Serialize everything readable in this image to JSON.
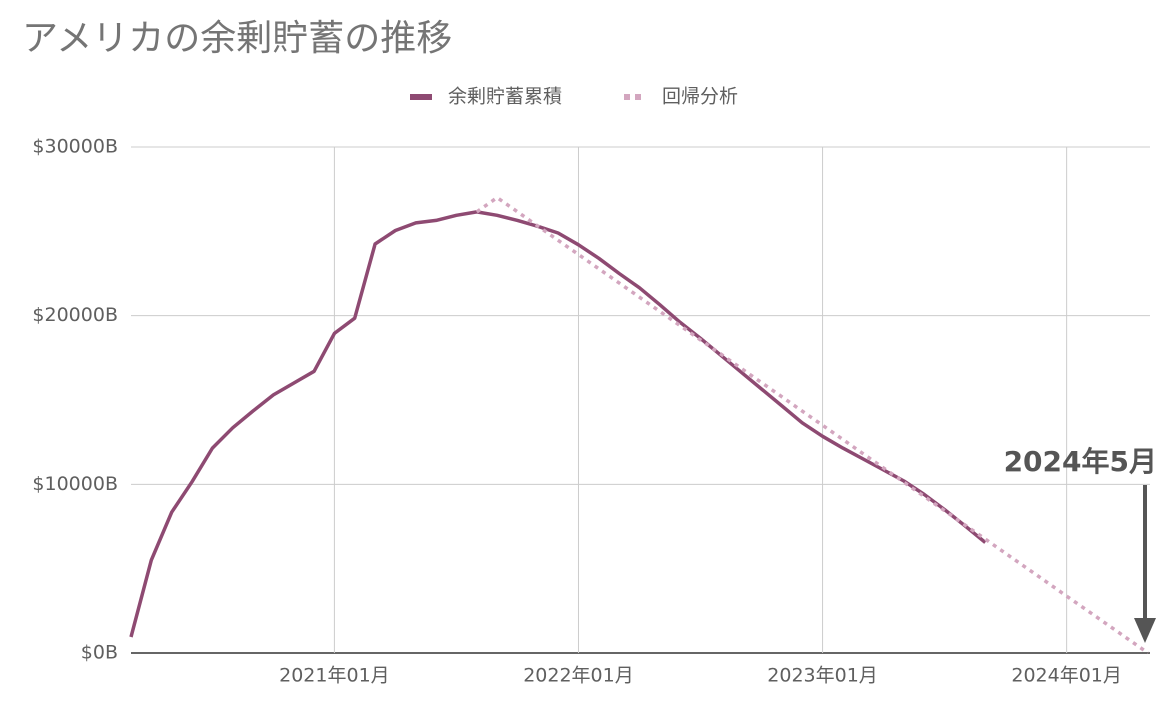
{
  "chart_data": {
    "type": "line",
    "title": "アメリカの余剰貯蓄の推移",
    "x": [
      "2020-03",
      "2020-04",
      "2020-05",
      "2020-06",
      "2020-07",
      "2020-08",
      "2020-09",
      "2020-10",
      "2020-11",
      "2020-12",
      "2021-01",
      "2021-02",
      "2021-03",
      "2021-04",
      "2021-05",
      "2021-06",
      "2021-07",
      "2021-08",
      "2021-09",
      "2021-10",
      "2021-11",
      "2021-12",
      "2022-01",
      "2022-02",
      "2022-03",
      "2022-04",
      "2022-05",
      "2022-06",
      "2022-07",
      "2022-08",
      "2022-09",
      "2022-10",
      "2022-11",
      "2022-12",
      "2023-01",
      "2023-02",
      "2023-03",
      "2023-04",
      "2023-05",
      "2023-06",
      "2023-07",
      "2023-08",
      "2023-09",
      "2023-10",
      "2023-11",
      "2023-12",
      "2024-01",
      "2024-02",
      "2024-03",
      "2024-04",
      "2024-05"
    ],
    "series": [
      {
        "name": "余剰貯蓄累積",
        "color": "#8e4a72",
        "style": "solid",
        "values": [
          950,
          5500,
          8350,
          10150,
          12150,
          13350,
          14350,
          15300,
          16000,
          16700,
          18950,
          19850,
          24250,
          25050,
          25500,
          25650,
          25950,
          26150,
          25950,
          25650,
          25300,
          24900,
          24200,
          23400,
          22500,
          21650,
          20650,
          19600,
          18650,
          17650,
          16650,
          15650,
          14650,
          13650,
          12850,
          12150,
          11500,
          10850,
          10200,
          9400,
          8500,
          7550,
          6550,
          null,
          null,
          null,
          null,
          null,
          null,
          null,
          null
        ]
      },
      {
        "name": "回帰分析",
        "color": "#d3a6bf",
        "style": "dotted",
        "values": [
          null,
          null,
          null,
          null,
          null,
          null,
          null,
          null,
          null,
          null,
          null,
          null,
          null,
          null,
          null,
          null,
          null,
          26150,
          27000,
          26156,
          25313,
          24469,
          23625,
          22781,
          21938,
          21094,
          20250,
          19406,
          18563,
          17719,
          16875,
          16031,
          15188,
          14344,
          13500,
          12656,
          11813,
          10969,
          10125,
          9281,
          8438,
          7594,
          6750,
          5906,
          5063,
          4219,
          3375,
          2531,
          1688,
          844,
          0
        ]
      }
    ],
    "xlim": [
      "2020-03",
      "2024-05"
    ],
    "xticks": [
      {
        "value": "2021-01",
        "label": "2021年01月"
      },
      {
        "value": "2022-01",
        "label": "2022年01月"
      },
      {
        "value": "2023-01",
        "label": "2023年01月"
      },
      {
        "value": "2024-01",
        "label": "2024年01月"
      }
    ],
    "ylim": [
      0,
      30000
    ],
    "yticks": [
      {
        "value": 0,
        "label": "$0B"
      },
      {
        "value": 10000,
        "label": "$10000B"
      },
      {
        "value": 20000,
        "label": "$20000B"
      },
      {
        "value": 30000,
        "label": "$30000B"
      }
    ],
    "grid": true,
    "legend": "top",
    "annotations": [
      {
        "text": "2024年5月",
        "x": "2024-05"
      }
    ]
  }
}
